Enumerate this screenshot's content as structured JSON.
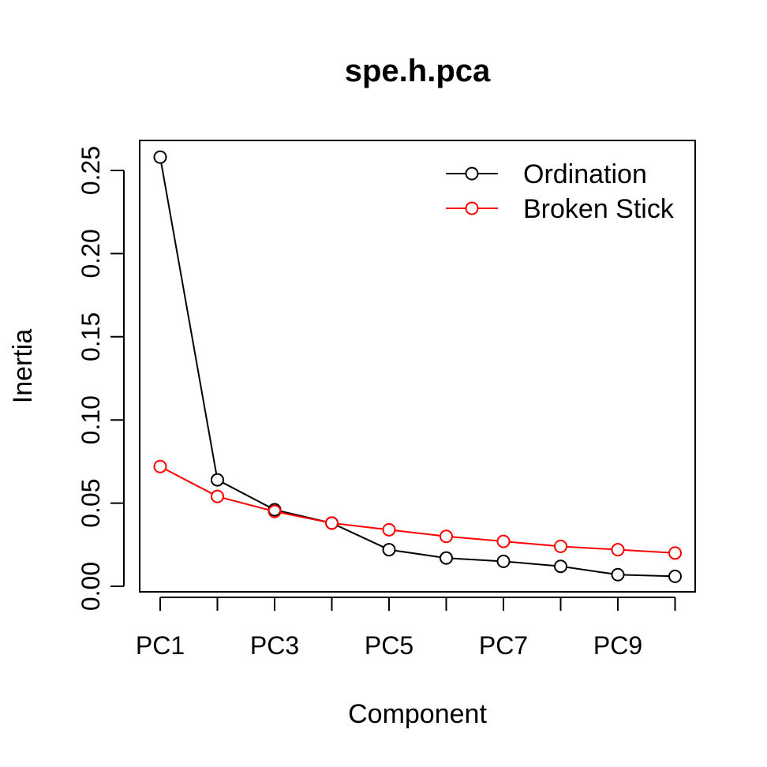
{
  "chart_data": {
    "type": "line",
    "title": "spe.h.pca",
    "xlabel": "Component",
    "ylabel": "Inertia",
    "categories": [
      "PC1",
      "PC2",
      "PC3",
      "PC4",
      "PC5",
      "PC6",
      "PC7",
      "PC8",
      "PC9",
      "PC10"
    ],
    "x_tick_labels": [
      "PC1",
      "PC3",
      "PC5",
      "PC7",
      "PC9"
    ],
    "y_ticks": [
      "0.00",
      "0.05",
      "0.10",
      "0.15",
      "0.20",
      "0.25"
    ],
    "ylim": [
      0,
      0.25
    ],
    "legend_position": "top-right",
    "grid": false,
    "series": [
      {
        "name": "Ordination",
        "color": "#000000",
        "marker": "open-circle",
        "values": [
          0.258,
          0.064,
          0.046,
          0.038,
          0.022,
          0.017,
          0.015,
          0.012,
          0.007,
          0.006
        ]
      },
      {
        "name": "Broken Stick",
        "color": "#ff0000",
        "marker": "open-circle",
        "values": [
          0.072,
          0.054,
          0.045,
          0.038,
          0.034,
          0.03,
          0.027,
          0.024,
          0.022,
          0.02
        ]
      }
    ]
  }
}
